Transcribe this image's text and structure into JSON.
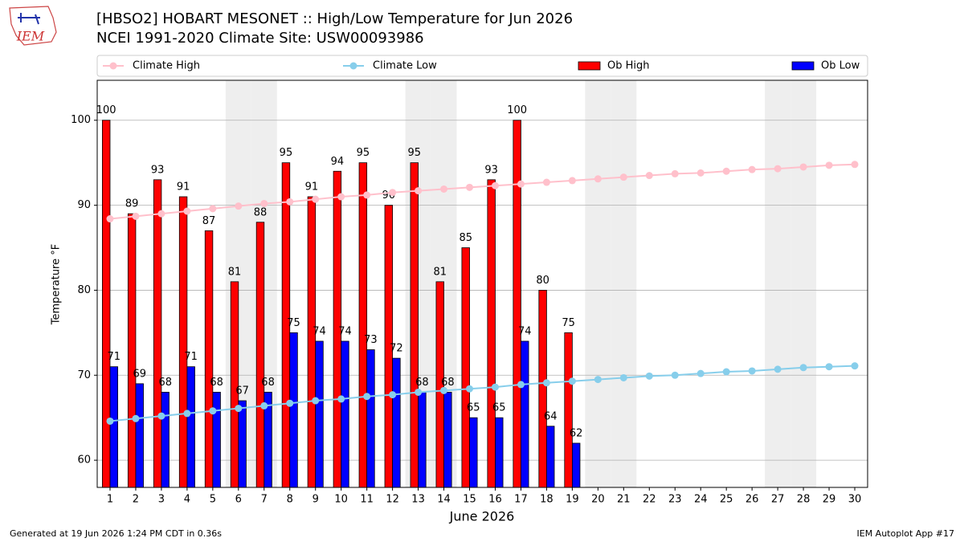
{
  "chart_data": {
    "type": "bar",
    "logo": "IEM",
    "title": "[HBSO2] HOBART MESONET :: High/Low Temperature for Jun 2026",
    "subtitle": "NCEI 1991-2020 Climate Site: USW00093986",
    "xlabel": "June 2026",
    "ylabel": "Temperature °F",
    "footer_left": "Generated at 19 Jun 2026 1:24 PM CDT in 0.36s",
    "footer_right": "IEM Autoplot App #17",
    "x": [
      1,
      2,
      3,
      4,
      5,
      6,
      7,
      8,
      9,
      10,
      11,
      12,
      13,
      14,
      15,
      16,
      17,
      18,
      19,
      20,
      21,
      22,
      23,
      24,
      25,
      26,
      27,
      28,
      29,
      30
    ],
    "xlim": [
      0.5,
      30.5
    ],
    "xticks": [
      1,
      2,
      3,
      4,
      5,
      6,
      7,
      8,
      9,
      10,
      11,
      12,
      13,
      14,
      15,
      16,
      17,
      18,
      19,
      20,
      21,
      22,
      23,
      24,
      25,
      26,
      27,
      28,
      29,
      30
    ],
    "ylim": [
      56.8,
      104.7
    ],
    "yticks": [
      60,
      70,
      80,
      90,
      100
    ],
    "grid": true,
    "shaded_days": [
      6,
      7,
      13,
      14,
      20,
      21,
      27,
      28
    ],
    "series": [
      {
        "name": "Climate High",
        "type": "line",
        "color": "#ffc0cb",
        "values": [
          88.4,
          88.7,
          89.0,
          89.3,
          89.6,
          89.9,
          90.2,
          90.4,
          90.7,
          91.0,
          91.2,
          91.5,
          91.7,
          91.9,
          92.1,
          92.3,
          92.5,
          92.7,
          92.9,
          93.1,
          93.3,
          93.5,
          93.7,
          93.8,
          94.0,
          94.2,
          94.3,
          94.5,
          94.7,
          94.8
        ]
      },
      {
        "name": "Climate Low",
        "type": "line",
        "color": "#87ceeb",
        "values": [
          64.6,
          64.9,
          65.2,
          65.5,
          65.8,
          66.1,
          66.4,
          66.7,
          67.0,
          67.2,
          67.5,
          67.7,
          68.0,
          68.2,
          68.4,
          68.6,
          68.9,
          69.1,
          69.3,
          69.5,
          69.7,
          69.9,
          70.0,
          70.2,
          70.4,
          70.5,
          70.7,
          70.9,
          71.0,
          71.1
        ]
      },
      {
        "name": "Ob High",
        "type": "bar",
        "color": "#ff0000",
        "offset": -0.3,
        "values": [
          100,
          89,
          93,
          91,
          87,
          81,
          88,
          95,
          91,
          94,
          95,
          90,
          95,
          81,
          85,
          93,
          100,
          80,
          75,
          null,
          null,
          null,
          null,
          null,
          null,
          null,
          null,
          null,
          null,
          null
        ]
      },
      {
        "name": "Ob Low",
        "type": "bar",
        "color": "#0000ff",
        "offset": 0,
        "values": [
          71,
          69,
          68,
          71,
          68,
          67,
          68,
          75,
          74,
          74,
          73,
          72,
          68,
          68,
          65,
          65,
          74,
          64,
          62,
          null,
          null,
          null,
          null,
          null,
          null,
          null,
          null,
          null,
          null,
          null
        ]
      }
    ]
  }
}
